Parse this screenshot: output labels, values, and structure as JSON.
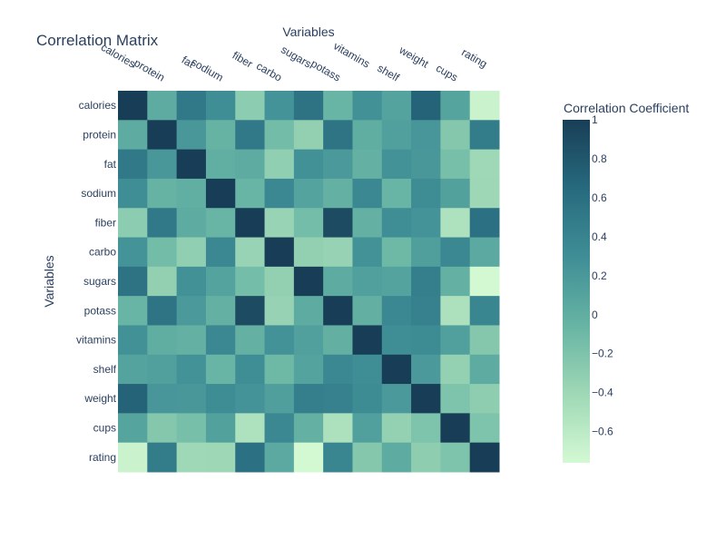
{
  "chart_data": {
    "type": "heatmap",
    "title": "Correlation Matrix",
    "xlabel": "Variables",
    "ylabel": "Variables",
    "colorbar_title": "Correlation Coefficient",
    "variables": [
      "calories",
      "protein",
      "fat",
      "sodium",
      "fiber",
      "carbo",
      "sugars",
      "potass",
      "vitamins",
      "shelf",
      "weight",
      "cups",
      "rating"
    ],
    "matrix": [
      [
        1.0,
        0.02,
        0.5,
        0.3,
        -0.29,
        0.25,
        0.56,
        -0.07,
        0.27,
        0.1,
        0.7,
        0.09,
        -0.69
      ],
      [
        0.02,
        1.0,
        0.21,
        -0.05,
        0.5,
        -0.13,
        -0.33,
        0.55,
        0.01,
        0.13,
        0.22,
        -0.24,
        0.47
      ],
      [
        0.5,
        0.21,
        1.0,
        0.0,
        0.02,
        -0.32,
        0.27,
        0.19,
        -0.03,
        0.26,
        0.21,
        -0.16,
        -0.41
      ],
      [
        0.3,
        -0.05,
        0.0,
        1.0,
        -0.07,
        0.36,
        0.1,
        -0.03,
        0.36,
        -0.07,
        0.31,
        0.12,
        -0.4
      ],
      [
        -0.29,
        0.5,
        0.02,
        -0.07,
        1.0,
        -0.36,
        -0.14,
        0.9,
        -0.03,
        0.3,
        0.25,
        -0.51,
        0.58
      ],
      [
        0.25,
        -0.13,
        -0.32,
        0.36,
        -0.36,
        1.0,
        -0.33,
        -0.35,
        0.26,
        -0.1,
        0.14,
        0.36,
        0.05
      ],
      [
        0.56,
        -0.33,
        0.27,
        0.1,
        -0.14,
        -0.33,
        1.0,
        0.02,
        0.13,
        0.1,
        0.45,
        -0.03,
        -0.76
      ],
      [
        -0.07,
        0.55,
        0.19,
        -0.03,
        0.9,
        -0.35,
        0.02,
        1.0,
        -0.02,
        0.36,
        0.42,
        -0.5,
        0.38
      ],
      [
        0.27,
        0.01,
        -0.03,
        0.36,
        -0.03,
        0.26,
        0.13,
        -0.02,
        1.0,
        0.3,
        0.32,
        0.13,
        -0.24
      ],
      [
        0.1,
        0.13,
        0.26,
        -0.07,
        0.3,
        -0.1,
        0.1,
        0.36,
        0.3,
        1.0,
        0.19,
        -0.34,
        0.03
      ],
      [
        0.7,
        0.22,
        0.21,
        0.31,
        0.25,
        0.14,
        0.45,
        0.42,
        0.32,
        0.19,
        1.0,
        -0.2,
        -0.3
      ],
      [
        0.09,
        -0.24,
        -0.16,
        0.12,
        -0.51,
        0.36,
        -0.03,
        -0.5,
        0.13,
        -0.34,
        -0.2,
        1.0,
        -0.2
      ],
      [
        -0.69,
        0.47,
        -0.41,
        -0.4,
        0.58,
        0.05,
        -0.76,
        0.38,
        -0.24,
        0.03,
        -0.3,
        -0.2,
        1.0
      ]
    ],
    "zmin": -0.76,
    "zmax": 1.0,
    "colorbar_ticks": [
      1,
      0.8,
      0.6,
      0.4,
      0.2,
      0,
      -0.2,
      -0.4,
      -0.6
    ],
    "colorbar_tick_labels": [
      "1",
      "0.8",
      "0.6",
      "0.4",
      "0.2",
      "0",
      "−0.2",
      "−0.4",
      "−0.6"
    ],
    "colorscale": [
      "#d3f9d3",
      "#9fd8b6",
      "#67b4a4",
      "#3f8e96",
      "#276a7e",
      "#183e57"
    ],
    "grid": false
  }
}
